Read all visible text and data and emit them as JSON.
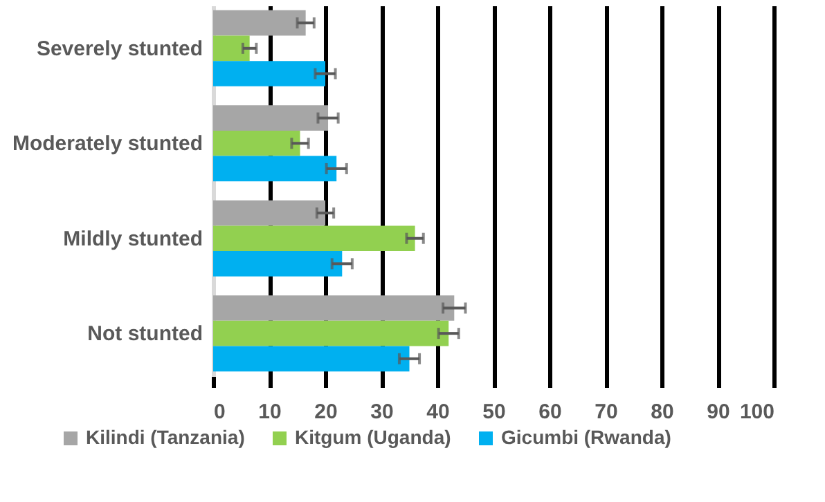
{
  "chart_data": {
    "type": "bar",
    "orientation": "horizontal",
    "categories": [
      "Severely stunted",
      "Moderately stunted",
      "Mildly stunted",
      "Not stunted"
    ],
    "series": [
      {
        "name": "Kilindi (Tanzania)",
        "color": "#a6a6a6",
        "values": [
          16.5,
          20.5,
          20,
          43
        ],
        "errors": [
          1.5,
          1.8,
          1.5,
          2
        ]
      },
      {
        "name": "Kitgum (Uganda)",
        "color": "#92d050",
        "values": [
          6.5,
          15.5,
          36,
          42
        ],
        "errors": [
          1.2,
          1.5,
          1.5,
          1.8
        ]
      },
      {
        "name": "Gicumbi (Rwanda)",
        "color": "#00b0f0",
        "values": [
          20,
          22,
          23,
          35
        ],
        "errors": [
          1.8,
          1.8,
          1.8,
          1.8
        ]
      }
    ],
    "xlim": [
      0,
      100
    ],
    "xticks": [
      0,
      10,
      20,
      30,
      40,
      50,
      60,
      70,
      80,
      90,
      100
    ],
    "grid": "x",
    "legend": "bottom"
  }
}
